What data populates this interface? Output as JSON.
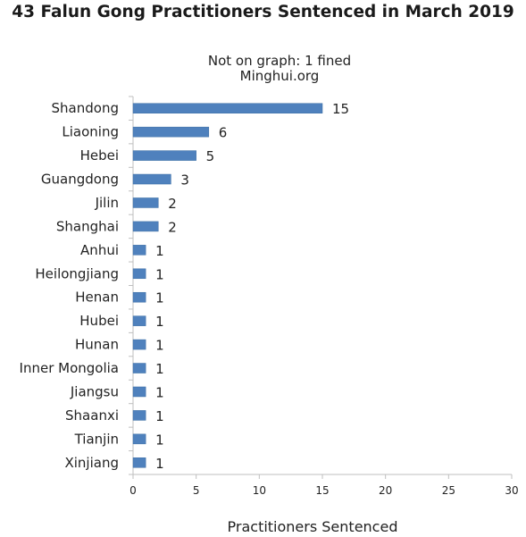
{
  "chart_data": {
    "type": "bar",
    "orientation": "horizontal",
    "title": "43 Falun Gong Practitioners Sentenced in March 2019",
    "subtitle_lines": [
      "Not on graph: 1 fined",
      "Minghui.org"
    ],
    "xlabel": "Practitioners Sentenced",
    "ylabel": "",
    "xlim": [
      0,
      30
    ],
    "xticks": [
      0,
      5,
      10,
      15,
      20,
      25,
      30
    ],
    "grid": false,
    "bar_color": "#4f81bd",
    "categories": [
      "Shandong",
      "Liaoning",
      "Hebei",
      "Guangdong",
      "Jilin",
      "Shanghai",
      "Anhui",
      "Heilongjiang",
      "Henan",
      "Hubei",
      "Hunan",
      "Inner Mongolia",
      "Jiangsu",
      "Shaanxi",
      "Tianjin",
      "Xinjiang"
    ],
    "values": [
      15,
      6,
      5,
      3,
      2,
      2,
      1,
      1,
      1,
      1,
      1,
      1,
      1,
      1,
      1,
      1
    ]
  }
}
